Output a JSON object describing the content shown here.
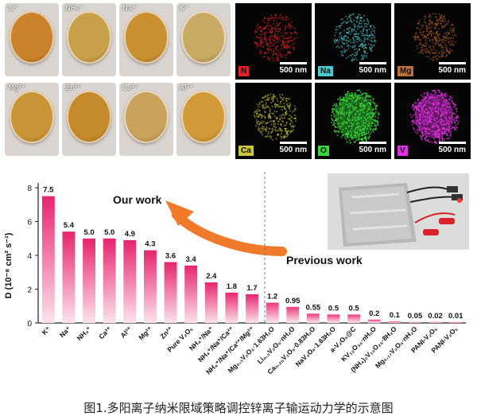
{
  "photo_labels": [
    "Li⁺",
    "NH₄⁺",
    "Na⁺",
    "K⁺",
    "Mg²⁺",
    "Zn²⁺",
    "Ca²⁺",
    "Al³⁺"
  ],
  "photo_colors": [
    "#c9822a",
    "#c9a04a",
    "#c98f30",
    "#c9aa64",
    "#c99436",
    "#c58a2c",
    "#c9a35c",
    "#d29a36"
  ],
  "eds_maps": [
    {
      "element": "N",
      "color": "#e8202a",
      "label_bg": "#e8202a",
      "scale": "500 nm"
    },
    {
      "element": "Na",
      "color": "#4fc9d0",
      "label_bg": "#4fc9d0",
      "scale": "500 nm"
    },
    {
      "element": "Mg",
      "color": "#b5612a",
      "label_bg": "#c0703a",
      "scale": "500 nm"
    },
    {
      "element": "Ca",
      "color": "#c8c838",
      "label_bg": "#c8c838",
      "scale": "500 nm"
    },
    {
      "element": "O",
      "color": "#38d838",
      "label_bg": "#38d838",
      "scale": "500 nm"
    },
    {
      "element": "V",
      "color": "#e030e0",
      "label_bg": "#e030e0",
      "scale": "500 nm"
    }
  ],
  "chart_data": {
    "type": "bar",
    "ylabel": "D (10⁻⁸ cm² s⁻¹)",
    "ylim": [
      0,
      8
    ],
    "yticks": [
      "0",
      "2",
      "4",
      "6",
      "8"
    ],
    "grid": false,
    "categories": [
      "K⁺",
      "Na⁺",
      "NH₄⁺",
      "Ca²⁺",
      "Al³⁺",
      "Mg²⁺",
      "Zn²⁺",
      "Pure V₂O₅",
      "NH₄⁺/Na⁺",
      "NH₄⁺/Na⁺/Ca²⁺",
      "NH₄⁺/Na⁺/Ca²⁺/Mg²⁺",
      "Mg₀.₃V₂O₅·1.63H₂O",
      "Li₀.₃V₂O₅·nH₂O",
      "Ca₀.₂₅V₂O₅·0.83H₂O",
      "NaV₃O₈·1.63H₂O",
      "a-V₂O₅@C",
      "KV₁₂O₃₀·nH₂O",
      "(NH₄)₂V₁₀O₂₅·8H₂O",
      "Mg₀.₁₇V₂O₅·nH₂O",
      "PANI-V₂O₅",
      "PANI-V₂O₅"
    ],
    "value_labels": [
      "7.5",
      "5.4",
      "5.0",
      "5.0",
      "4.9",
      "4.3",
      "3.6",
      "3.4",
      "2.4",
      "1.8",
      "1.7",
      "1.2",
      "0.95",
      "0.55",
      "0.5",
      "0.5",
      "0.2",
      "0.1",
      "0.05",
      "0.02",
      "0.01"
    ],
    "values": [
      7.5,
      5.4,
      5.0,
      5.0,
      4.9,
      4.3,
      3.6,
      3.4,
      2.4,
      1.8,
      1.7,
      1.2,
      0.95,
      0.55,
      0.5,
      0.5,
      0.2,
      0.1,
      0.05,
      0.02,
      0.01
    ],
    "annotations": [
      "Our work",
      "Previous work"
    ]
  },
  "caption": "图1.多阳离子纳米限域策略调控锌离子输运动力学的示意图"
}
